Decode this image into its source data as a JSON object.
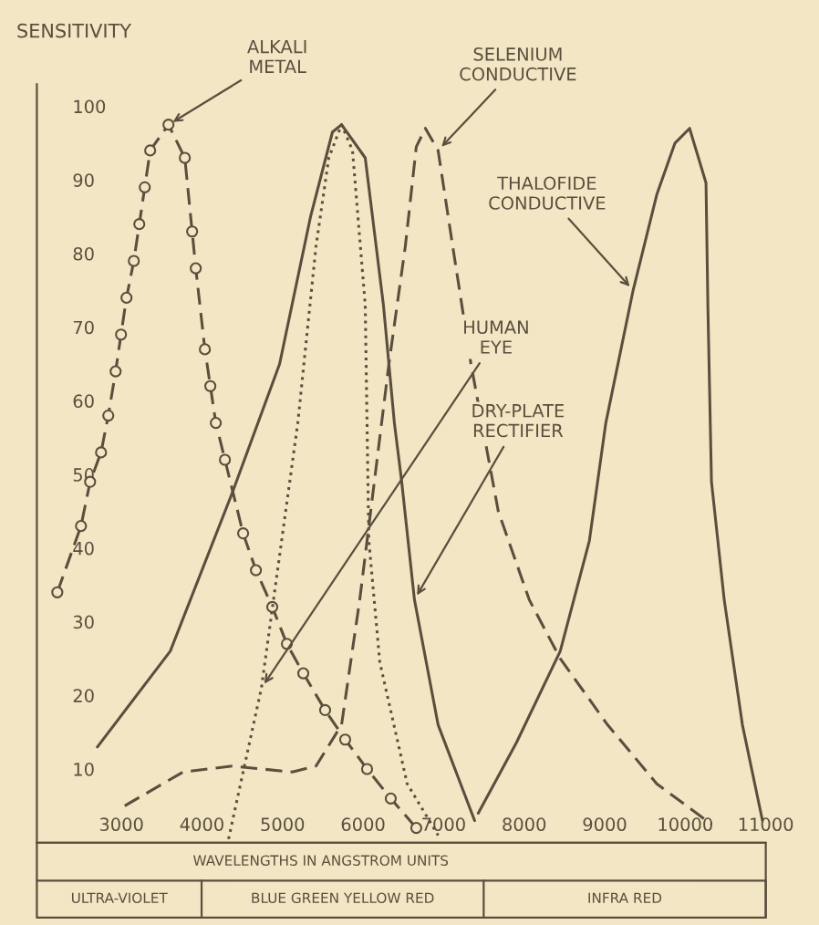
{
  "chart_data": {
    "type": "line",
    "ylabel": "SENSITIVITY",
    "xlabel": "WAVELENGTHS IN ANGSTROM UNITS",
    "xlim": [
      1950,
      11000
    ],
    "ylim": [
      0,
      103
    ],
    "xticks": [
      3000,
      4000,
      5000,
      6000,
      7000,
      8000,
      9000,
      10000,
      11000
    ],
    "yticks": [
      {
        "value": 10,
        "label": "10"
      },
      20,
      30,
      40,
      50,
      60,
      70,
      80,
      90,
      100
    ],
    "grid": false,
    "legend": false,
    "series": [
      {
        "name": "ALKALI METAL",
        "color": "#5a4f3e",
        "line_style": "dashed",
        "marker": "circle",
        "x": [
          2204,
          2498,
          2611,
          2747,
          2837,
          2928,
          2995,
          3063,
          3154,
          3222,
          3290,
          3357,
          3584,
          3787,
          3878,
          3923,
          4036,
          4104,
          4172,
          4285,
          4511,
          4670,
          4873,
          5054,
          5258,
          5529,
          5778,
          6050,
          6344,
          6661
        ],
        "values": [
          34,
          43,
          49,
          53,
          58,
          64,
          69,
          74,
          79,
          84,
          89,
          94,
          97.5,
          93,
          83,
          78,
          67,
          62,
          57,
          52,
          42,
          37,
          32,
          27,
          23,
          18,
          14,
          10,
          6,
          2
        ]
      },
      {
        "name": "SELENIUM CONDUCTIVE",
        "color": "#5a4f3e",
        "line_style": "dashed",
        "marker": "none",
        "x": [
          3041,
          3765,
          4376,
          5122,
          5416,
          5733,
          5959,
          6140,
          6321,
          6525,
          6661,
          6774,
          6932,
          7113,
          7340,
          7543,
          7679,
          8063,
          8448,
          9036,
          9647,
          10326
        ],
        "values": [
          5,
          9.6,
          10.4,
          9.6,
          10.4,
          16,
          33,
          49,
          65,
          81,
          94.5,
          97,
          94,
          81,
          65,
          53,
          45,
          33,
          25,
          16,
          8,
          2.5
        ]
      },
      {
        "name": "THALOFIDE CONDUCTIVE",
        "color": "#5a4f3e",
        "line_style": "solid",
        "marker": "none",
        "x": [
          7430,
          7905,
          8448,
          8810,
          9014,
          9353,
          9647,
          9873,
          10054,
          10258,
          10281,
          10326,
          10484,
          10710,
          10959
        ],
        "values": [
          4,
          13.6,
          26,
          41,
          57,
          75,
          88,
          95,
          97,
          89.6,
          73,
          49,
          33,
          16,
          3
        ]
      },
      {
        "name": "HUMAN EYE",
        "color": "#5a4f3e",
        "line_style": "dotted",
        "marker": "none",
        "x": [
          4330,
          4738,
          5190,
          5416,
          5575,
          5733,
          5869,
          6027,
          6072,
          6208,
          6548,
          6932
        ],
        "values": [
          0.5,
          21,
          57,
          81,
          93,
          97.5,
          94,
          73,
          41,
          24.5,
          8,
          1
        ]
      },
      {
        "name": "DRY-PLATE RECTIFIER",
        "color": "#5a4f3e",
        "line_style": "solid",
        "marker": "none",
        "x": [
          2701,
          3606,
          4376,
          4964,
          5348,
          5620,
          5733,
          6027,
          6253,
          6389,
          6480,
          6638,
          6932,
          7385
        ],
        "values": [
          13,
          26,
          47.5,
          65,
          85,
          96.5,
          97.5,
          93,
          73,
          57,
          49,
          33,
          16,
          3
        ]
      }
    ],
    "annotations": [
      "ULTRA-VIOLET",
      "BLUE GREEN YELLOW RED",
      "INFRA RED"
    ]
  }
}
